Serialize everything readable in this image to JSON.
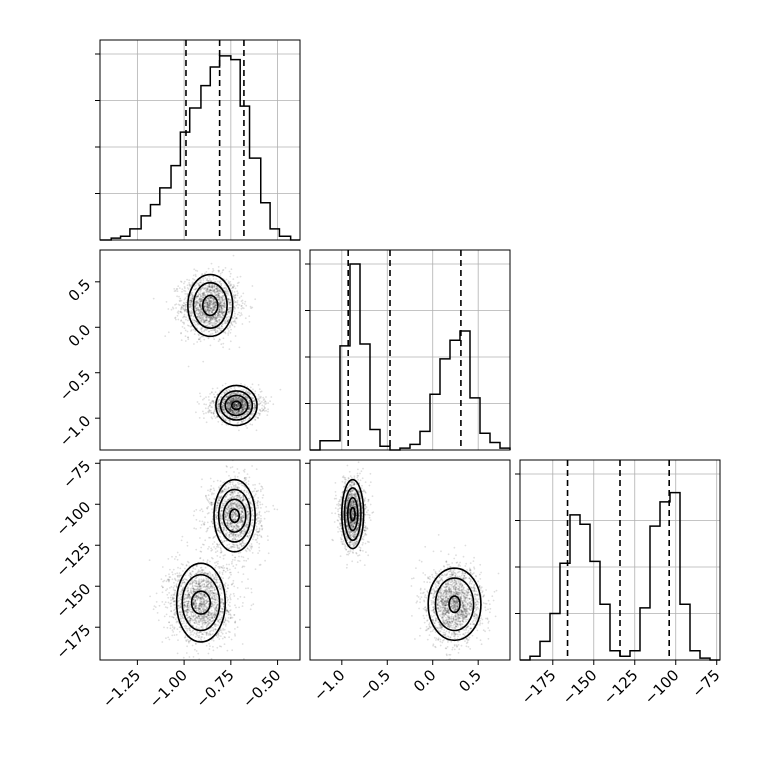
{
  "chart_data": {
    "type": "corner",
    "parameters": [
      {
        "ticks": [
          -1.25,
          -1.0,
          -0.75,
          -0.5
        ],
        "tick_labels": [
          "−1.25",
          "−1.00",
          "−0.75",
          "−0.50"
        ],
        "range": [
          -1.45,
          -0.38
        ],
        "quantiles": [
          -0.99,
          -0.81,
          -0.68
        ],
        "hist_bins": [
          -1.45,
          -1.39,
          -1.34,
          -1.29,
          -1.23,
          -1.18,
          -1.13,
          -1.07,
          -1.02,
          -0.97,
          -0.91,
          -0.86,
          -0.81,
          -0.75,
          -0.7,
          -0.65,
          -0.59,
          -0.54,
          -0.49,
          -0.43,
          -0.38
        ],
        "hist_counts": [
          0.0,
          0.01,
          0.02,
          0.06,
          0.13,
          0.19,
          0.28,
          0.4,
          0.58,
          0.71,
          0.83,
          0.93,
          0.99,
          0.97,
          0.72,
          0.44,
          0.2,
          0.06,
          0.02,
          0.0
        ]
      },
      {
        "ticks": [
          -1.0,
          -0.5,
          0.0,
          0.5
        ],
        "tick_labels": [
          "−1.0",
          "−0.5",
          "0.0",
          "0.5"
        ],
        "range": [
          -1.35,
          0.85
        ],
        "quantiles": [
          -0.93,
          -0.47,
          0.31
        ],
        "hist_bins": [
          -1.35,
          -1.24,
          -1.13,
          -1.02,
          -0.91,
          -0.8,
          -0.69,
          -0.58,
          -0.47,
          -0.36,
          -0.25,
          -0.14,
          -0.03,
          0.08,
          0.19,
          0.3,
          0.41,
          0.52,
          0.63,
          0.74,
          0.85
        ],
        "hist_counts": [
          0.0,
          0.05,
          0.05,
          0.56,
          1.0,
          0.57,
          0.11,
          0.02,
          0.0,
          0.01,
          0.03,
          0.1,
          0.3,
          0.49,
          0.59,
          0.64,
          0.28,
          0.09,
          0.04,
          0.01
        ]
      },
      {
        "ticks": [
          -175,
          -150,
          -125,
          -100,
          -75
        ],
        "tick_labels": [
          "−175",
          "−150",
          "−125",
          "−100",
          "−75"
        ],
        "range": [
          -195,
          -73
        ],
        "quantiles": [
          -166,
          -134,
          -104
        ],
        "hist_bins": [
          -195,
          -188.9,
          -182.8,
          -176.7,
          -170.6,
          -164.5,
          -158.4,
          -152.3,
          -146.2,
          -140.1,
          -134,
          -127.9,
          -121.8,
          -115.7,
          -109.6,
          -103.5,
          -97.4,
          -91.3,
          -85.2,
          -79.1,
          -73
        ],
        "hist_counts": [
          0.0,
          0.02,
          0.1,
          0.25,
          0.52,
          0.78,
          0.73,
          0.53,
          0.3,
          0.05,
          0.02,
          0.05,
          0.28,
          0.72,
          0.85,
          0.9,
          0.3,
          0.05,
          0.01,
          0.0
        ]
      }
    ],
    "pairs": [
      {
        "row": 1,
        "col": 0,
        "clusters": [
          {
            "center": [
              -0.86,
              0.24
            ],
            "spread": [
              0.075,
              0.16
            ],
            "n": 1800,
            "contours": [
              [
                0.12,
                0.34
              ],
              [
                0.09,
                0.25
              ],
              [
                0.04,
                0.11
              ]
            ]
          },
          {
            "center": [
              -0.72,
              -0.86
            ],
            "spread": [
              0.065,
              0.08
            ],
            "n": 1500,
            "contours": [
              [
                0.11,
                0.22
              ],
              [
                0.085,
                0.16
              ],
              [
                0.06,
                0.11
              ],
              [
                0.025,
                0.045
              ]
            ]
          }
        ]
      },
      {
        "row": 2,
        "col": 0,
        "clusters": [
          {
            "center": [
              -0.73,
              -107
            ],
            "spread": [
              0.07,
              11
            ],
            "n": 1500,
            "contours": [
              [
                0.11,
                22
              ],
              [
                0.085,
                16
              ],
              [
                0.06,
                10
              ],
              [
                0.025,
                4
              ]
            ]
          },
          {
            "center": [
              -0.91,
              -160
            ],
            "spread": [
              0.085,
              12
            ],
            "n": 1800,
            "contours": [
              [
                0.13,
                24
              ],
              [
                0.1,
                17
              ],
              [
                0.05,
                7
              ]
            ]
          }
        ]
      },
      {
        "row": 2,
        "col": 1,
        "clusters": [
          {
            "center": [
              -0.88,
              -106
            ],
            "spread": [
              0.07,
              10
            ],
            "n": 1500,
            "contours": [
              [
                0.12,
                21
              ],
              [
                0.09,
                16
              ],
              [
                0.055,
                10
              ],
              [
                0.025,
                4
              ]
            ]
          },
          {
            "center": [
              0.24,
              -161
            ],
            "spread": [
              0.15,
              11
            ],
            "n": 1800,
            "contours": [
              [
                0.29,
                22
              ],
              [
                0.21,
                16
              ],
              [
                0.06,
                5
              ]
            ]
          }
        ]
      }
    ]
  }
}
